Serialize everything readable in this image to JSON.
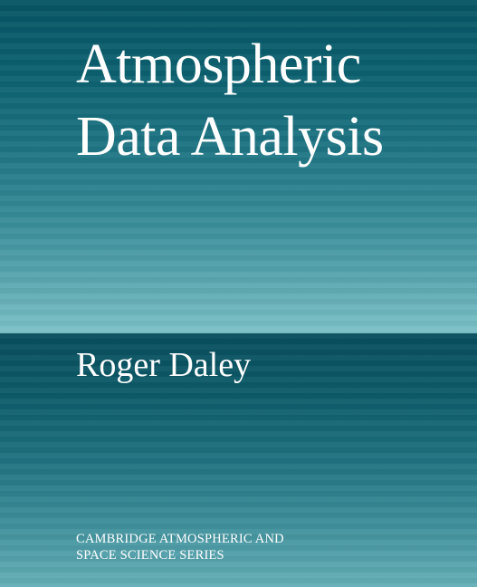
{
  "cover": {
    "title_line_1": "Atmospheric",
    "title_line_2": "Data Analysis",
    "author": "Roger Daley",
    "series_line_1": "CAMBRIDGE ATMOSPHERIC AND",
    "series_line_2": "SPACE SCIENCE SERIES"
  },
  "colors": {
    "top_band_start": "#075565",
    "top_band_end": "#7cc2c8",
    "bottom_band_start": "#084e5d",
    "bottom_band_end": "#66b0b8",
    "text": "#ffffff"
  }
}
